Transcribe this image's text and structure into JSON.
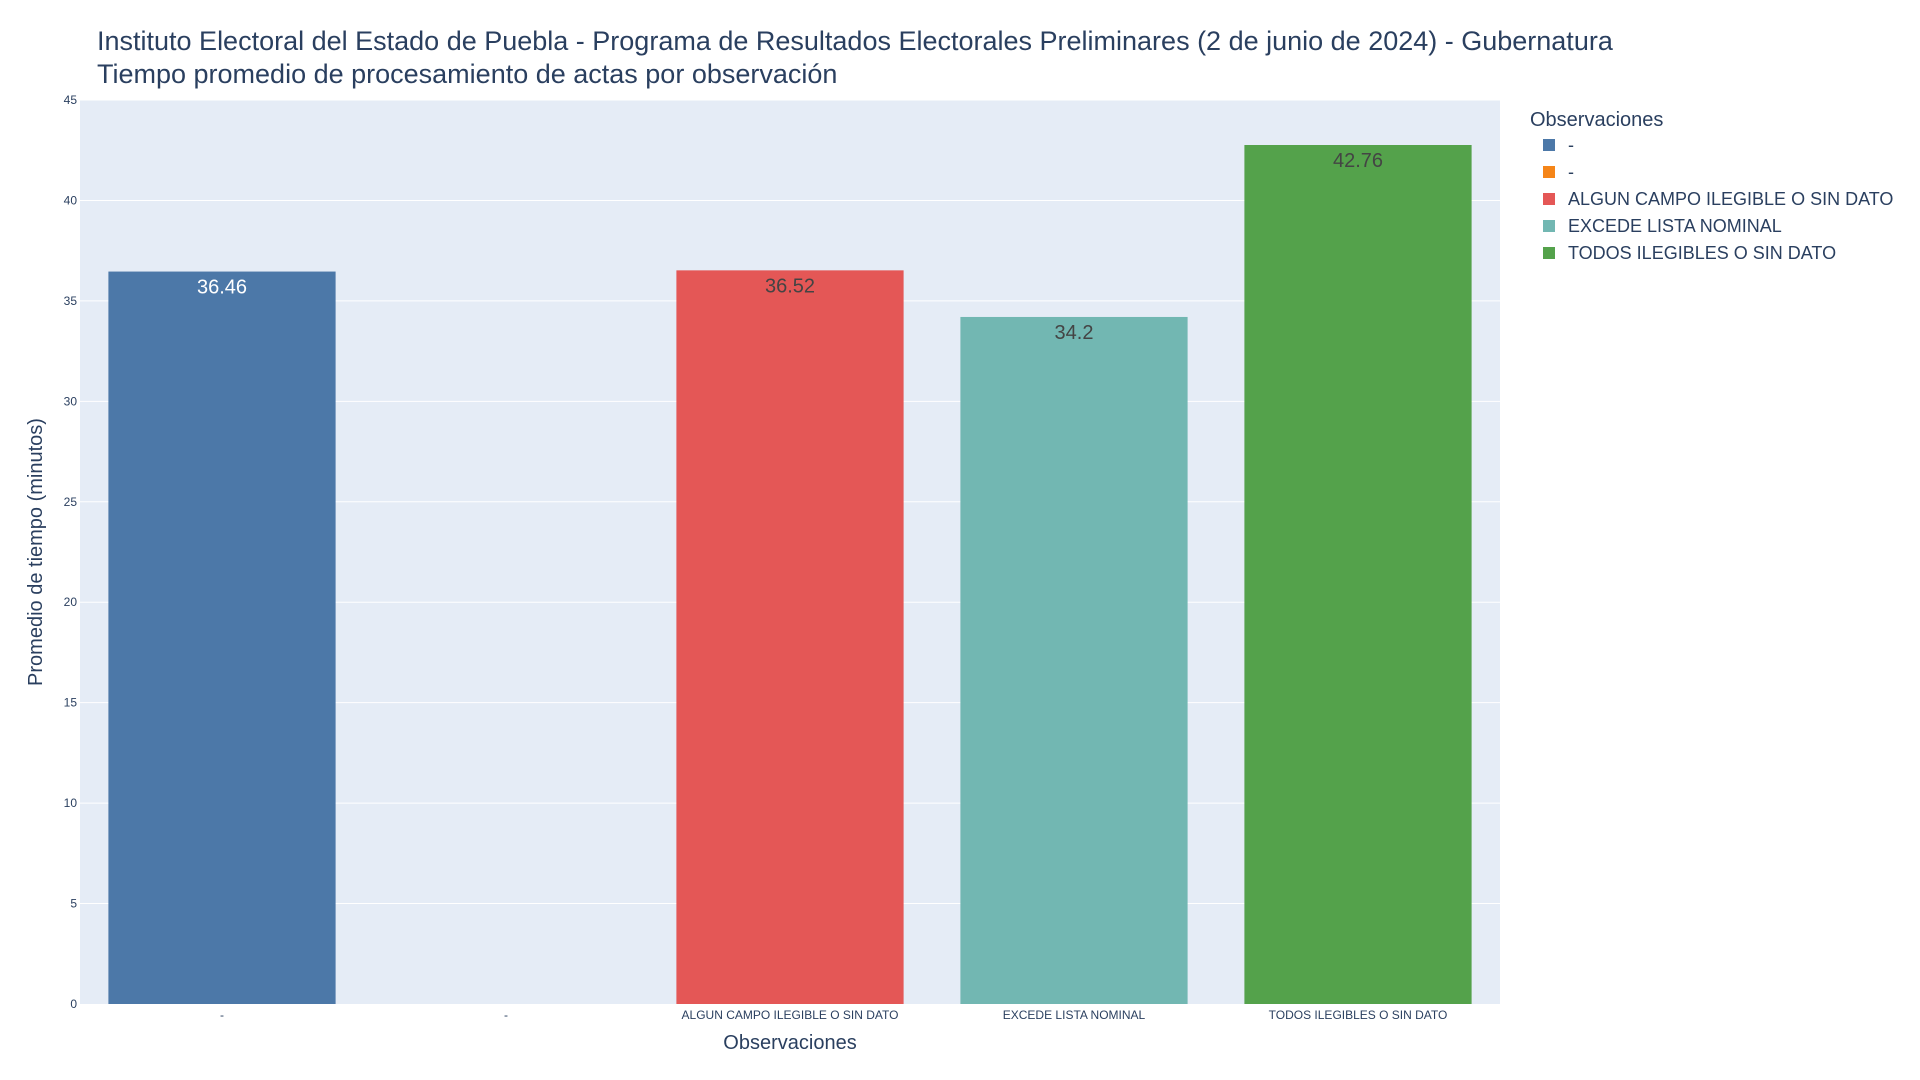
{
  "chart_data": {
    "type": "bar",
    "title": "Instituto Electoral del Estado de Puebla - Programa de Resultados Electorales Preliminares (2 de junio de 2024) - Gubernatura",
    "subtitle": "Tiempo promedio de procesamiento de actas por observación",
    "xlabel": "Observaciones",
    "ylabel": "Promedio de tiempo (minutos)",
    "categories": [
      "-",
      "-",
      "ALGUN CAMPO ILEGIBLE O SIN DATO",
      "EXCEDE LISTA NOMINAL",
      "TODOS ILEGIBLES O SIN DATO"
    ],
    "ylim": [
      0,
      45
    ],
    "yticks": [
      0,
      5,
      10,
      15,
      20,
      25,
      30,
      35,
      40,
      45
    ],
    "grid": true,
    "legend_title": "Observaciones",
    "legend_placement": "top-right, outside plot",
    "series": [
      {
        "name": " -",
        "category_index": 0,
        "value": 36.46,
        "label": "36.46",
        "color": "#4c78a8",
        "label_color": "#ffffff"
      },
      {
        "name": "-",
        "category_index": 1,
        "value": null,
        "label": "",
        "color": "#f58518",
        "label_color": "#444444"
      },
      {
        "name": "ALGUN CAMPO ILEGIBLE O SIN DATO",
        "category_index": 2,
        "value": 36.52,
        "label": "36.52",
        "color": "#e45756",
        "label_color": "#444444"
      },
      {
        "name": "EXCEDE LISTA NOMINAL",
        "category_index": 3,
        "value": 34.2,
        "label": "34.2",
        "color": "#72b7b2",
        "label_color": "#444444"
      },
      {
        "name": "TODOS ILEGIBLES O SIN DATO",
        "category_index": 4,
        "value": 42.76,
        "label": "42.76",
        "color": "#54a24b",
        "label_color": "#444444"
      }
    ],
    "plot_background": "#e5ecf6",
    "gridline_color": "#ffffff"
  }
}
